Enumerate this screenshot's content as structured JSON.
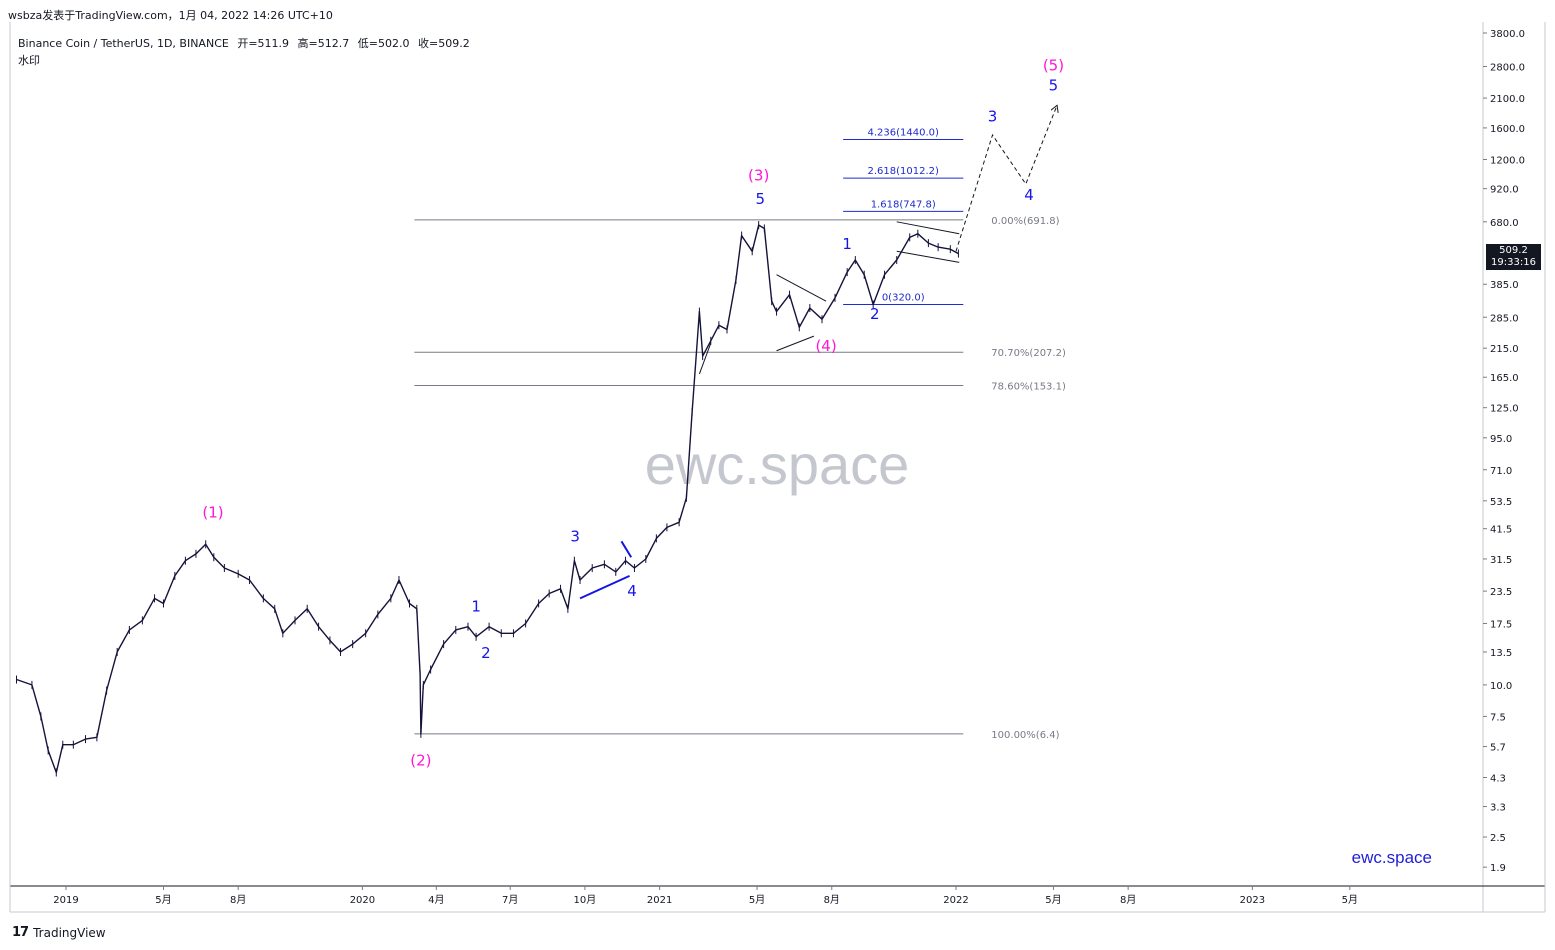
{
  "header": {
    "publisher": "wsbza发表于TradingView.com，1月 04, 2022 14:26 UTC+10"
  },
  "legend": {
    "symbol": "Binance Coin / TetherUS, 1D, BINANCE",
    "open_label": "开=511.9",
    "high_label": "高=512.7",
    "low_label": "低=502.0",
    "close_label": "收=509.2",
    "watermark_label": "水印"
  },
  "watermark": {
    "center_text": "ewc.space",
    "corner_text": "ewc.space",
    "corner_color": "#1f1fd6"
  },
  "footer": {
    "brand": "TradingView"
  },
  "price_tag": {
    "price": "509.2",
    "countdown": "19:33:16"
  },
  "colors": {
    "wave_blue": "#1515e6",
    "wave_magenta": "#ff16d8",
    "fib_gray": "#787b86",
    "fib_blue": "#1f2bcc",
    "candle": "#15133a"
  },
  "chart_data": {
    "type": "line",
    "title": "Binance Coin / TetherUS, 1D, BINANCE",
    "y_scale": "log",
    "y_ticks": [
      3800.0,
      2800.0,
      2100.0,
      1600.0,
      1200.0,
      920.0,
      680.0,
      385.0,
      285.0,
      215.0,
      165.0,
      125.0,
      95.0,
      71.0,
      53.5,
      41.5,
      31.5,
      23.5,
      17.5,
      13.5,
      10.0,
      7.5,
      5.7,
      4.3,
      3.3,
      2.5,
      1.9
    ],
    "y_tick_labels": [
      "3800.0",
      "2800.0",
      "2100.0",
      "1600.0",
      "1200.0",
      "920.0",
      "680.0",
      "385.0",
      "285.0",
      "215.0",
      "165.0",
      "125.0",
      "95.0",
      "71.0",
      "53.5",
      "41.5",
      "31.5",
      "23.5",
      "17.5",
      "13.5",
      "10.0",
      "7.5",
      "5.7",
      "4.3",
      "3.3",
      "2.5",
      "1.9"
    ],
    "x_ticks": [
      {
        "date": "2019-01-01",
        "label": "2019"
      },
      {
        "date": "2019-05-01",
        "label": "5月"
      },
      {
        "date": "2019-08-01",
        "label": "8月"
      },
      {
        "date": "2020-01-01",
        "label": "2020"
      },
      {
        "date": "2020-04-01",
        "label": "4月"
      },
      {
        "date": "2020-07-01",
        "label": "7月"
      },
      {
        "date": "2020-10-01",
        "label": "10月"
      },
      {
        "date": "2021-01-01",
        "label": "2021"
      },
      {
        "date": "2021-05-01",
        "label": "5月"
      },
      {
        "date": "2021-08-01",
        "label": "8月"
      },
      {
        "date": "2022-01-01",
        "label": "2022"
      },
      {
        "date": "2022-05-01",
        "label": "5月"
      },
      {
        "date": "2022-08-01",
        "label": "8月"
      },
      {
        "date": "2023-01-01",
        "label": "2023"
      },
      {
        "date": "2023-05-01",
        "label": "5月"
      }
    ],
    "x_range": [
      "2018-10-24",
      "2023-10-12"
    ],
    "y_range": [
      1.6,
      4200
    ],
    "grid": false,
    "price_series": {
      "name": "BNBUSDT",
      "points": [
        [
          "2018-11-01",
          10.5
        ],
        [
          "2018-11-20",
          10.0
        ],
        [
          "2018-12-01",
          7.5
        ],
        [
          "2018-12-10",
          5.5
        ],
        [
          "2018-12-20",
          4.5
        ],
        [
          "2018-12-28",
          5.8
        ],
        [
          "2019-01-10",
          5.8
        ],
        [
          "2019-01-25",
          6.1
        ],
        [
          "2019-02-08",
          6.2
        ],
        [
          "2019-02-20",
          9.5
        ],
        [
          "2019-03-05",
          13.5
        ],
        [
          "2019-03-20",
          16.5
        ],
        [
          "2019-04-05",
          18.0
        ],
        [
          "2019-04-20",
          22.0
        ],
        [
          "2019-05-01",
          21.0
        ],
        [
          "2019-05-15",
          27.0
        ],
        [
          "2019-05-28",
          31.0
        ],
        [
          "2019-06-10",
          33.0
        ],
        [
          "2019-06-22",
          36.0
        ],
        [
          "2019-07-02",
          32.0
        ],
        [
          "2019-07-15",
          29.0
        ],
        [
          "2019-08-01",
          27.5
        ],
        [
          "2019-08-15",
          26.0
        ],
        [
          "2019-09-01",
          22.0
        ],
        [
          "2019-09-15",
          20.0
        ],
        [
          "2019-09-25",
          16.0
        ],
        [
          "2019-10-10",
          18.0
        ],
        [
          "2019-10-25",
          20.0
        ],
        [
          "2019-11-08",
          17.0
        ],
        [
          "2019-11-22",
          15.0
        ],
        [
          "2019-12-05",
          13.5
        ],
        [
          "2019-12-20",
          14.5
        ],
        [
          "2020-01-05",
          16.0
        ],
        [
          "2020-01-20",
          19.0
        ],
        [
          "2020-02-05",
          22.0
        ],
        [
          "2020-02-15",
          26.0
        ],
        [
          "2020-02-28",
          21.0
        ],
        [
          "2020-03-08",
          20.0
        ],
        [
          "2020-03-12",
          11.0
        ],
        [
          "2020-03-13",
          6.4
        ],
        [
          "2020-03-16",
          10.0
        ],
        [
          "2020-03-25",
          11.5
        ],
        [
          "2020-04-10",
          14.5
        ],
        [
          "2020-04-25",
          16.5
        ],
        [
          "2020-05-10",
          17.0
        ],
        [
          "2020-05-20",
          15.5
        ],
        [
          "2020-06-05",
          17.0
        ],
        [
          "2020-06-20",
          16.0
        ],
        [
          "2020-07-05",
          16.0
        ],
        [
          "2020-07-20",
          17.5
        ],
        [
          "2020-08-05",
          21.0
        ],
        [
          "2020-08-18",
          23.0
        ],
        [
          "2020-09-01",
          24.0
        ],
        [
          "2020-09-10",
          20.0
        ],
        [
          "2020-09-18",
          31.0
        ],
        [
          "2020-09-25",
          26.0
        ],
        [
          "2020-10-10",
          29.0
        ],
        [
          "2020-10-25",
          30.0
        ],
        [
          "2020-11-08",
          28.0
        ],
        [
          "2020-11-20",
          31.0
        ],
        [
          "2020-12-01",
          29.0
        ],
        [
          "2020-12-15",
          31.5
        ],
        [
          "2020-12-28",
          38.0
        ],
        [
          "2021-01-10",
          42.0
        ],
        [
          "2021-01-25",
          44.0
        ],
        [
          "2021-02-03",
          55.0
        ],
        [
          "2021-02-10",
          120.0
        ],
        [
          "2021-02-19",
          300.0
        ],
        [
          "2021-02-23",
          200.0
        ],
        [
          "2021-03-05",
          230.0
        ],
        [
          "2021-03-15",
          265.0
        ],
        [
          "2021-03-25",
          255.0
        ],
        [
          "2021-04-05",
          400.0
        ],
        [
          "2021-04-12",
          600.0
        ],
        [
          "2021-04-25",
          520.0
        ],
        [
          "2021-05-03",
          660.0
        ],
        [
          "2021-05-10",
          640.0
        ],
        [
          "2021-05-19",
          330.0
        ],
        [
          "2021-05-25",
          300.0
        ],
        [
          "2021-06-10",
          350.0
        ],
        [
          "2021-06-22",
          260.0
        ],
        [
          "2021-07-05",
          310.0
        ],
        [
          "2021-07-20",
          280.0
        ],
        [
          "2021-08-05",
          340.0
        ],
        [
          "2021-08-20",
          430.0
        ],
        [
          "2021-08-30",
          480.0
        ],
        [
          "2021-09-10",
          420.0
        ],
        [
          "2021-09-21",
          320.0
        ],
        [
          "2021-10-05",
          420.0
        ],
        [
          "2021-10-20",
          480.0
        ],
        [
          "2021-11-05",
          590.0
        ],
        [
          "2021-11-15",
          610.0
        ],
        [
          "2021-11-28",
          560.0
        ],
        [
          "2021-12-10",
          540.0
        ],
        [
          "2021-12-25",
          530.0
        ],
        [
          "2022-01-04",
          509.2
        ]
      ]
    },
    "fib_levels": [
      {
        "label": "0.00%(691.8)",
        "value": 691.8,
        "color": "#787b86"
      },
      {
        "label": "70.70%(207.2)",
        "value": 207.2,
        "color": "#787b86"
      },
      {
        "label": "78.60%(153.1)",
        "value": 153.1,
        "color": "#787b86"
      },
      {
        "label": "100.00%(6.4)",
        "value": 6.4,
        "color": "#787b86"
      },
      {
        "label": "1.618(747.8)",
        "value": 747.8,
        "color": "#1f2bcc"
      },
      {
        "label": "2.618(1012.2)",
        "value": 1012.2,
        "color": "#1f2bcc"
      },
      {
        "label": "4.236(1440.0)",
        "value": 1440.0,
        "color": "#1f2bcc"
      },
      {
        "label": "0(320.0)",
        "value": 320.0,
        "color": "#1f2bcc"
      }
    ],
    "wave_labels": [
      {
        "text": "(1)",
        "date": "2019-07-01",
        "price": 46.0,
        "color": "#ff16d8"
      },
      {
        "text": "(2)",
        "date": "2020-03-13",
        "price": 4.8,
        "color": "#ff16d8"
      },
      {
        "text": "(3)",
        "date": "2021-05-03",
        "price": 990.0,
        "color": "#ff16d8"
      },
      {
        "text": "(4)",
        "date": "2021-07-25",
        "price": 210.0,
        "color": "#ff16d8"
      },
      {
        "text": "(5)",
        "date": "2022-05-01",
        "price": 2700.0,
        "color": "#ff16d8"
      },
      {
        "text": "1",
        "date": "2020-05-20",
        "price": 19.5,
        "color": "#1515e6"
      },
      {
        "text": "2",
        "date": "2020-06-01",
        "price": 12.8,
        "color": "#1515e6"
      },
      {
        "text": "3",
        "date": "2020-09-19",
        "price": 37.0,
        "color": "#1515e6"
      },
      {
        "text": "4",
        "date": "2020-11-28",
        "price": 22.5,
        "color": "#1515e6"
      },
      {
        "text": "5",
        "date": "2021-05-05",
        "price": 800.0,
        "color": "#1515e6"
      },
      {
        "text": "1",
        "date": "2021-08-20",
        "price": 530.0,
        "color": "#1515e6"
      },
      {
        "text": "2",
        "date": "2021-09-23",
        "price": 280.0,
        "color": "#1515e6"
      },
      {
        "text": "3",
        "date": "2022-02-15",
        "price": 1700.0,
        "color": "#1515e6"
      },
      {
        "text": "4",
        "date": "2022-04-01",
        "price": 830.0,
        "color": "#1515e6"
      },
      {
        "text": "5",
        "date": "2022-05-01",
        "price": 2250.0,
        "color": "#1515e6"
      }
    ],
    "projection_path": [
      [
        "2022-01-01",
        520.0
      ],
      [
        "2022-02-15",
        1500.0
      ],
      [
        "2022-03-28",
        960.0
      ],
      [
        "2022-05-05",
        1950.0
      ]
    ]
  }
}
